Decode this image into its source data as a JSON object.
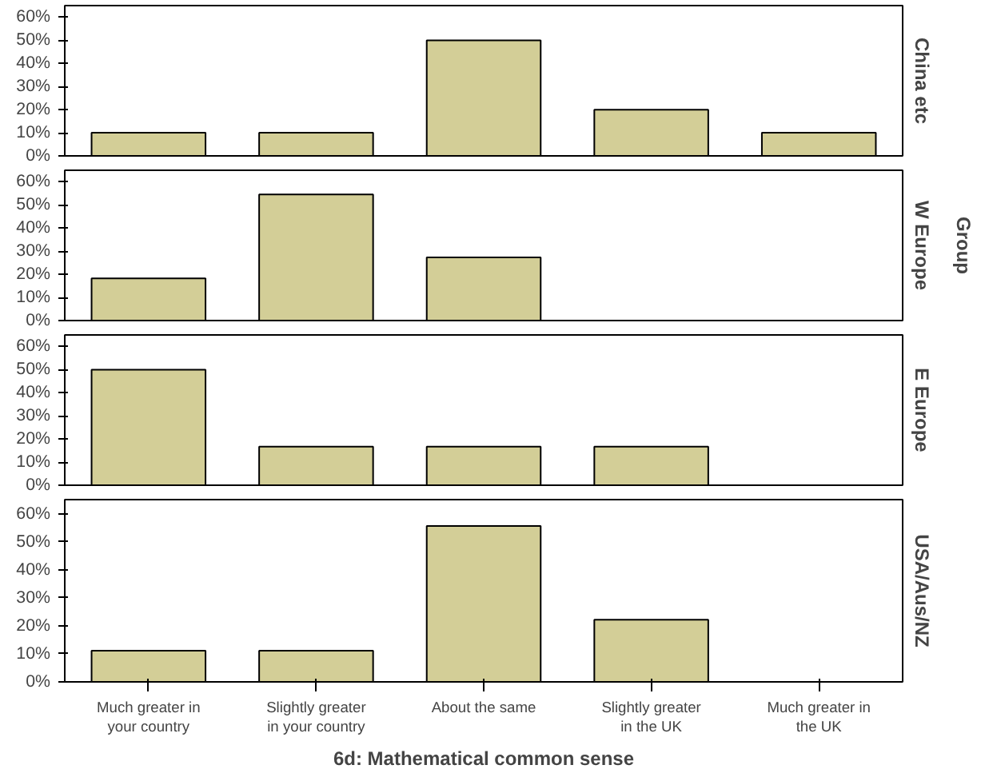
{
  "chart_data": [
    {
      "type": "bar",
      "title": "China etc",
      "categories": [
        "Much greater in your country",
        "Slightly greater in your country",
        "About the same",
        "Slightly greater in the UK",
        "Much greater in the UK"
      ],
      "values": [
        10,
        10,
        50,
        20,
        10
      ],
      "color": "#d3ce97",
      "ylim": [
        0,
        65
      ],
      "yticks": [
        {
          "value": 0,
          "label": "0%"
        },
        {
          "value": 10,
          "label": "10%"
        },
        {
          "value": 20,
          "label": "20%"
        },
        {
          "value": 30,
          "label": "30%"
        },
        {
          "value": 40,
          "label": "40%"
        },
        {
          "value": 50,
          "label": "50%"
        },
        {
          "value": 60,
          "label": "60%"
        }
      ],
      "tick_labels": "y",
      "grid": false
    },
    {
      "type": "bar",
      "title": "W Europe",
      "y2label": "Group",
      "categories": [
        "Much greater in your country",
        "Slightly greater in your country",
        "About the same",
        "Slightly greater in the UK",
        "Much greater in the UK"
      ],
      "values": [
        18.2,
        54.5,
        27.3,
        0,
        0
      ],
      "color": "#d3ce97",
      "ylim": [
        0,
        65
      ],
      "yticks": [
        {
          "value": 0,
          "label": "0%"
        },
        {
          "value": 10,
          "label": "10%"
        },
        {
          "value": 20,
          "label": "20%"
        },
        {
          "value": 30,
          "label": "30%"
        },
        {
          "value": 40,
          "label": "40%"
        },
        {
          "value": 50,
          "label": "50%"
        },
        {
          "value": 60,
          "label": "60%"
        }
      ],
      "tick_labels": "y",
      "grid": false
    },
    {
      "type": "bar",
      "title": "E Europe",
      "categories": [
        "Much greater in your country",
        "Slightly greater in your country",
        "About the same",
        "Slightly greater in the UK",
        "Much greater in the UK"
      ],
      "values": [
        50,
        16.7,
        16.7,
        16.7,
        0
      ],
      "color": "#d3ce97",
      "ylim": [
        0,
        65
      ],
      "yticks": [
        {
          "value": 0,
          "label": "0%"
        },
        {
          "value": 10,
          "label": "10%"
        },
        {
          "value": 20,
          "label": "20%"
        },
        {
          "value": 30,
          "label": "30%"
        },
        {
          "value": 40,
          "label": "40%"
        },
        {
          "value": 50,
          "label": "50%"
        },
        {
          "value": 60,
          "label": "60%"
        }
      ],
      "tick_labels": "y",
      "grid": false
    },
    {
      "type": "bar",
      "title": "USA/Aus/NZ",
      "xlabel": "6d: Mathematical common sense",
      "categories": [
        "Much greater in your country",
        "Slightly greater in your country",
        "About the same",
        "Slightly greater in the UK",
        "Much greater in the UK"
      ],
      "values": [
        11.1,
        11.1,
        55.6,
        22.2,
        0
      ],
      "color": "#d3ce97",
      "ylim": [
        0,
        65
      ],
      "yticks": [
        {
          "value": 0,
          "label": "0%"
        },
        {
          "value": 10,
          "label": "10%"
        },
        {
          "value": 20,
          "label": "20%"
        },
        {
          "value": 30,
          "label": "30%"
        },
        {
          "value": 40,
          "label": "40%"
        },
        {
          "value": 50,
          "label": "50%"
        },
        {
          "value": 60,
          "label": "60%"
        }
      ],
      "grid": false
    }
  ]
}
